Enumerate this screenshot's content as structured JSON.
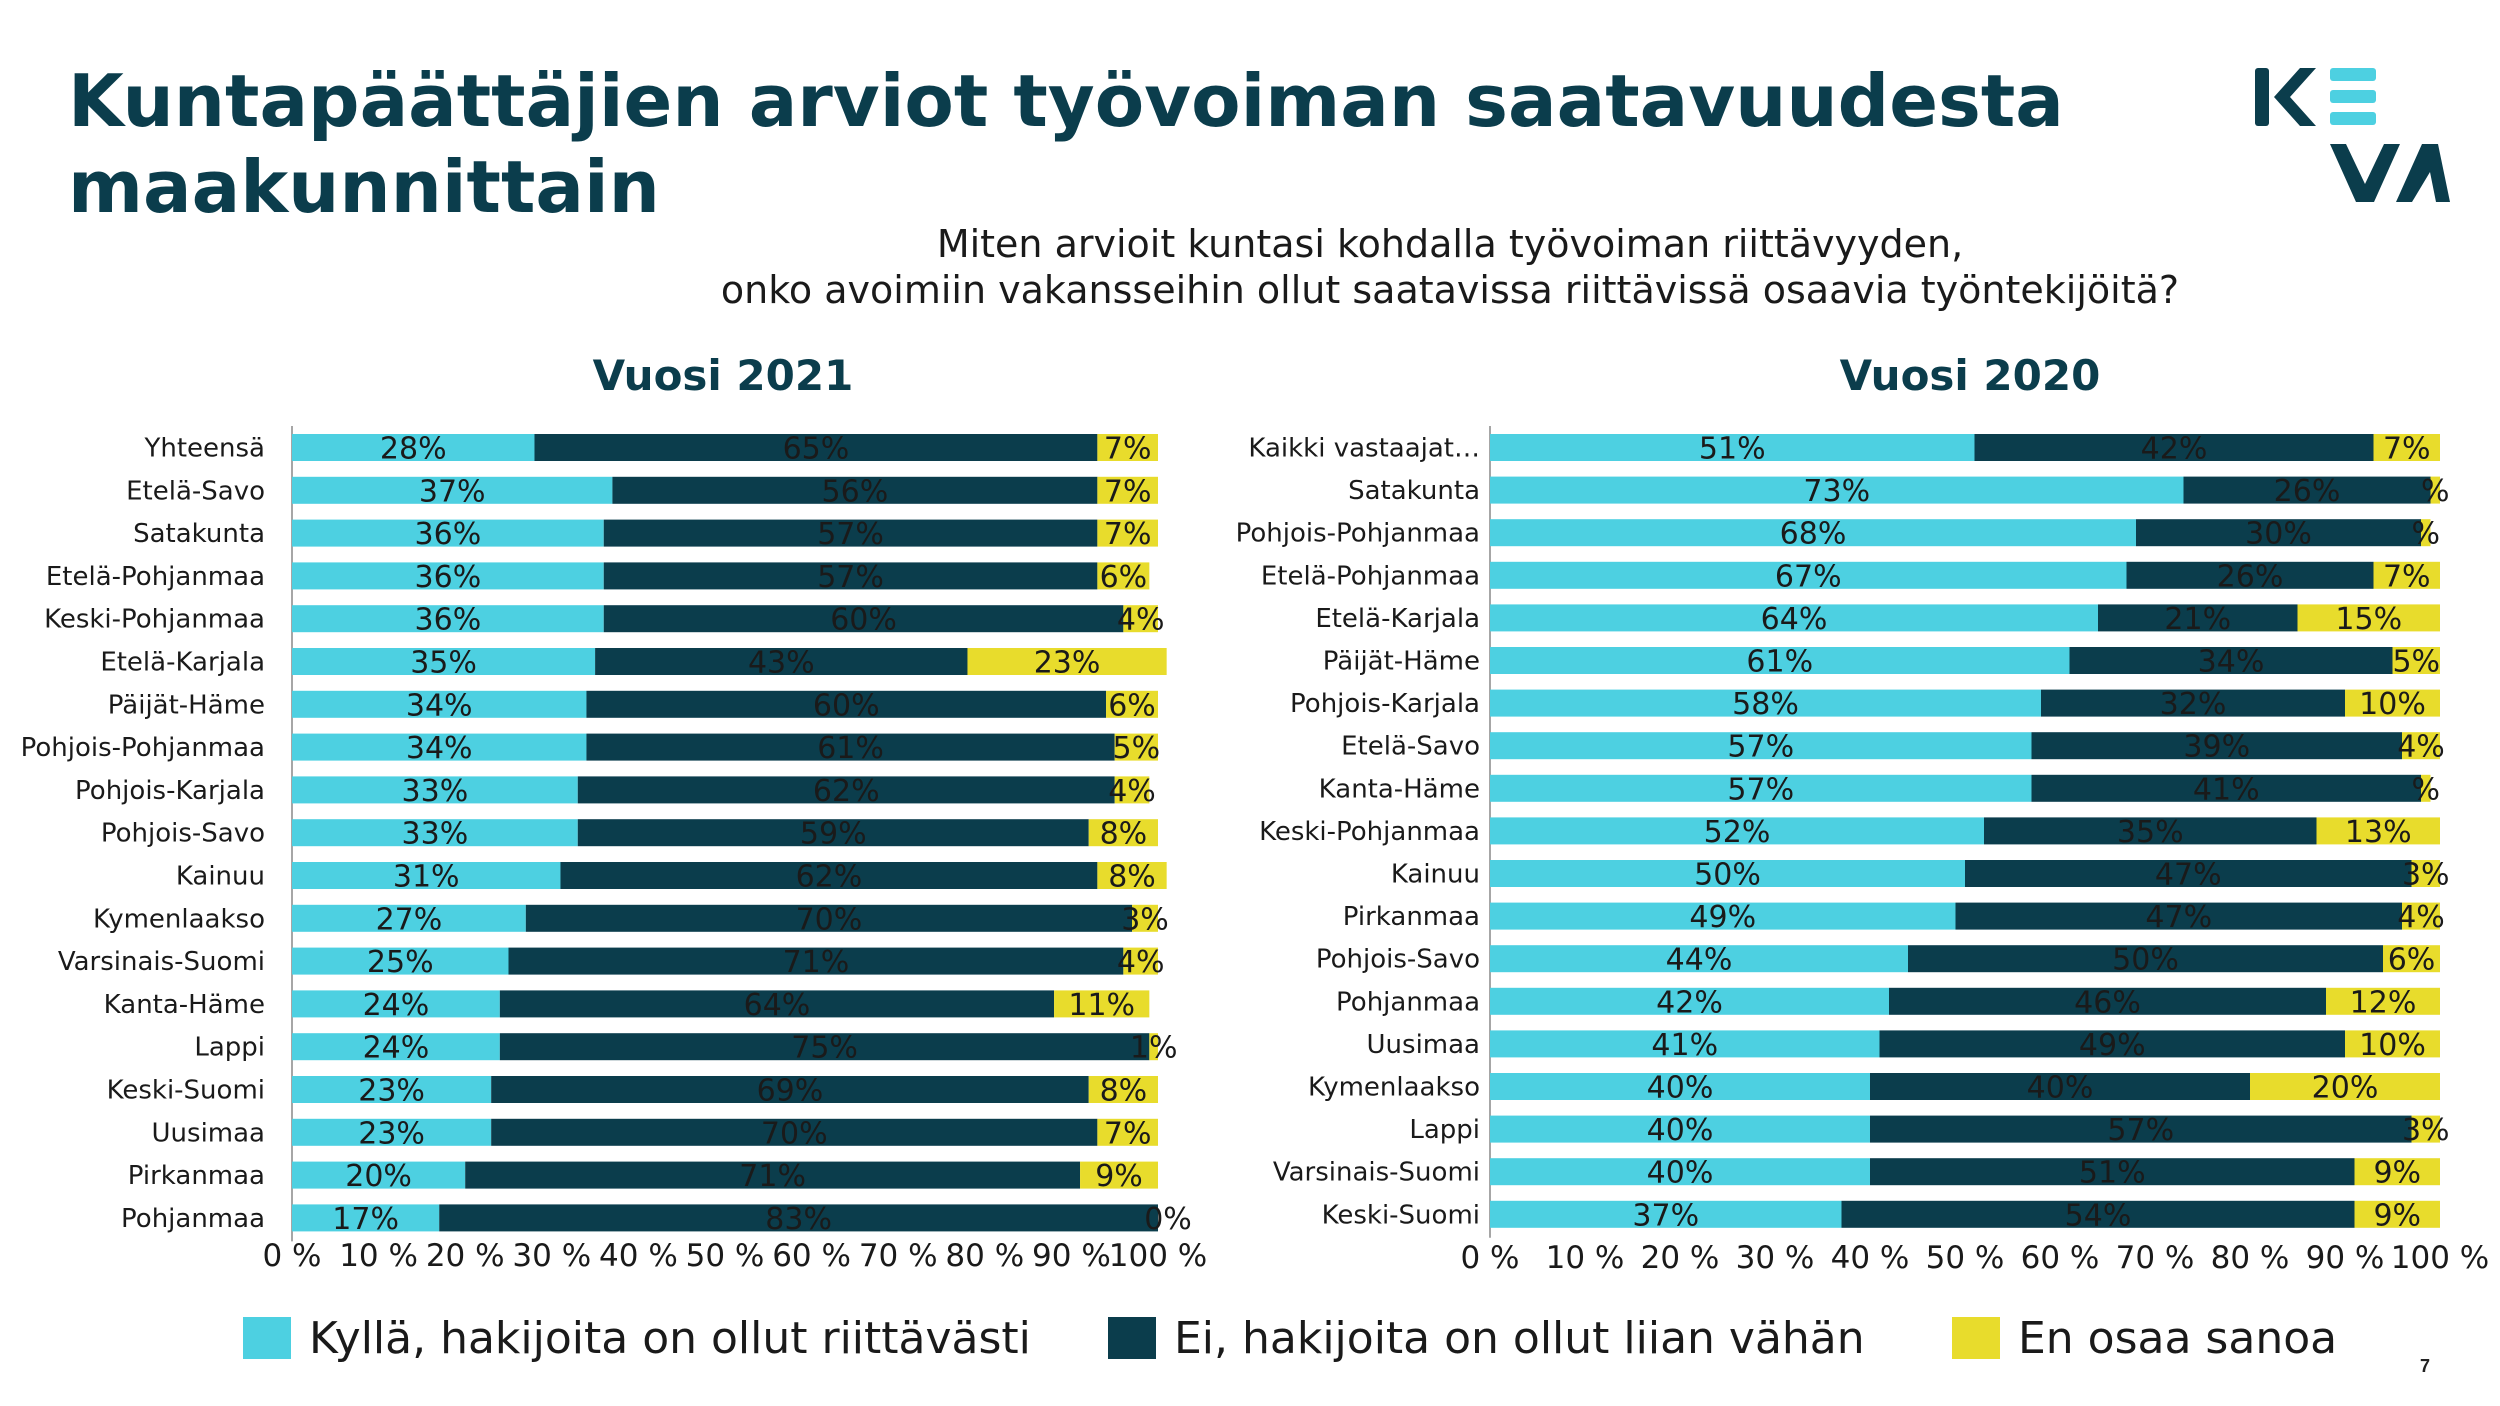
{
  "slide": {
    "title_line1": "Kuntapäättäjien arviot työvoiman saatavuudesta",
    "title_line2": "maakunnittain",
    "question_line1": "Miten arvioit kuntasi kohdalla työvoiman riittävyyden,",
    "question_line2": "onko avoimiin vakansseihin ollut saatavissa riittävissä osaavia työntekijöitä?",
    "logo_text": "KEVA",
    "page_number": "7"
  },
  "colors": {
    "yes": "#4dd0e1",
    "no": "#0b3d4c",
    "dont_know": "#e8dc2c",
    "title": "#0b3d4c"
  },
  "legend": [
    {
      "label": "Kyllä, hakijoita on ollut riittävästi",
      "color": "#4dd0e1"
    },
    {
      "label": "Ei, hakijoita on ollut liian vähän",
      "color": "#0b3d4c"
    },
    {
      "label": "En osaa sanoa",
      "color": "#e8dc2c"
    }
  ],
  "chart_data": [
    {
      "type": "bar",
      "orientation": "horizontal",
      "stacked": true,
      "title": "Vuosi 2021",
      "xlim": [
        0,
        100
      ],
      "x_ticks": [
        "0 %",
        "10 %",
        "20 %",
        "30 %",
        "40 %",
        "50 %",
        "60 %",
        "70 %",
        "80 %",
        "90 %",
        "100 %"
      ],
      "categories": [
        "Yhteensä",
        "Etelä-Savo",
        "Satakunta",
        "Etelä-Pohjanmaa",
        "Keski-Pohjanmaa",
        "Etelä-Karjala",
        "Päijät-Häme",
        "Pohjois-Pohjanmaa",
        "Pohjois-Karjala",
        "Pohjois-Savo",
        "Kainuu",
        "Kymenlaakso",
        "Varsinais-Suomi",
        "Kanta-Häme",
        "Lappi",
        "Keski-Suomi",
        "Uusimaa",
        "Pirkanmaa",
        "Pohjanmaa"
      ],
      "series": [
        {
          "name": "Kyllä, hakijoita on ollut riittävästi",
          "values": [
            28,
            37,
            36,
            36,
            36,
            35,
            34,
            34,
            33,
            33,
            31,
            27,
            25,
            24,
            24,
            23,
            23,
            20,
            17
          ]
        },
        {
          "name": "Ei, hakijoita on ollut liian vähän",
          "values": [
            65,
            56,
            57,
            57,
            60,
            43,
            60,
            61,
            62,
            59,
            62,
            70,
            71,
            64,
            75,
            69,
            70,
            71,
            83
          ]
        },
        {
          "name": "En osaa sanoa",
          "values": [
            7,
            7,
            7,
            6,
            4,
            23,
            6,
            5,
            4,
            8,
            8,
            3,
            4,
            11,
            1,
            8,
            7,
            9,
            0
          ]
        }
      ],
      "data_labels": [
        [
          "28%",
          "65%",
          "7%"
        ],
        [
          "37%",
          "56%",
          "7%"
        ],
        [
          "36%",
          "57%",
          "7%"
        ],
        [
          "36%",
          "57%",
          "6%"
        ],
        [
          "36%",
          "60%",
          "4%"
        ],
        [
          "35%",
          "43%",
          "23%"
        ],
        [
          "34%",
          "60%",
          "6%"
        ],
        [
          "34%",
          "61%",
          "5%"
        ],
        [
          "33%",
          "62%",
          "4%"
        ],
        [
          "33%",
          "59%",
          "8%"
        ],
        [
          "31%",
          "62%",
          "8%"
        ],
        [
          "27%",
          "70%",
          "3%"
        ],
        [
          "25%",
          "71%",
          "4%"
        ],
        [
          "24%",
          "64%",
          "11%"
        ],
        [
          "24%",
          "75%",
          "1%"
        ],
        [
          "23%",
          "69%",
          "8%"
        ],
        [
          "23%",
          "70%",
          "7%"
        ],
        [
          "20%",
          "71%",
          "9%"
        ],
        [
          "17%",
          "83%",
          "0%"
        ]
      ]
    },
    {
      "type": "bar",
      "orientation": "horizontal",
      "stacked": true,
      "title": "Vuosi 2020",
      "xlim": [
        0,
        100
      ],
      "x_ticks": [
        "0 %",
        "10 %",
        "20 %",
        "30 %",
        "40 %",
        "50 %",
        "60 %",
        "70 %",
        "80 %",
        "90 %",
        "100 %"
      ],
      "categories": [
        "Kaikki vastaajat…",
        "Satakunta",
        "Pohjois-Pohjanmaa",
        "Etelä-Pohjanmaa",
        "Etelä-Karjala",
        "Päijät-Häme",
        "Pohjois-Karjala",
        "Etelä-Savo",
        "Kanta-Häme",
        "Keski-Pohjanmaa",
        "Kainuu",
        "Pirkanmaa",
        "Pohjois-Savo",
        "Pohjanmaa",
        "Uusimaa",
        "Kymenlaakso",
        "Lappi",
        "Varsinais-Suomi",
        "Keski-Suomi"
      ],
      "series": [
        {
          "name": "Kyllä, hakijoita on ollut riittävästi",
          "values": [
            51,
            73,
            68,
            67,
            64,
            61,
            58,
            57,
            57,
            52,
            50,
            49,
            44,
            42,
            41,
            40,
            40,
            40,
            37
          ]
        },
        {
          "name": "Ei, hakijoita on ollut liian vähän",
          "values": [
            42,
            26,
            30,
            26,
            21,
            34,
            32,
            39,
            41,
            35,
            47,
            47,
            50,
            46,
            49,
            40,
            57,
            51,
            54
          ]
        },
        {
          "name": "En osaa sanoa",
          "values": [
            7,
            1,
            1,
            7,
            15,
            5,
            10,
            4,
            1,
            13,
            3,
            4,
            6,
            12,
            10,
            20,
            3,
            9,
            9
          ]
        }
      ],
      "data_labels": [
        [
          "51%",
          "42%",
          "7%"
        ],
        [
          "73%",
          "26%",
          "%"
        ],
        [
          "68%",
          "30%",
          "%"
        ],
        [
          "67%",
          "26%",
          "7%"
        ],
        [
          "64%",
          "21%",
          "15%"
        ],
        [
          "61%",
          "34%",
          "5%"
        ],
        [
          "58%",
          "32%",
          "10%"
        ],
        [
          "57%",
          "39%",
          "4%"
        ],
        [
          "57%",
          "41%",
          "%"
        ],
        [
          "52%",
          "35%",
          "13%"
        ],
        [
          "50%",
          "47%",
          "3%"
        ],
        [
          "49%",
          "47%",
          "4%"
        ],
        [
          "44%",
          "50%",
          "6%"
        ],
        [
          "42%",
          "46%",
          "12%"
        ],
        [
          "41%",
          "49%",
          "10%"
        ],
        [
          "40%",
          "40%",
          "20%"
        ],
        [
          "40%",
          "57%",
          "3%"
        ],
        [
          "40%",
          "51%",
          "9%"
        ],
        [
          "37%",
          "54%",
          "9%"
        ]
      ]
    }
  ]
}
